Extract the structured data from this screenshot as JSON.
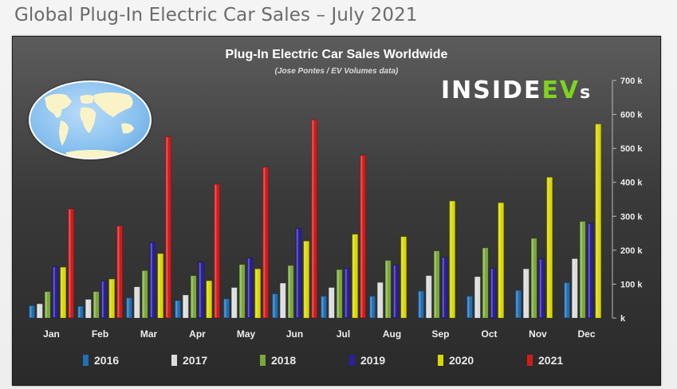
{
  "header": {
    "title": "Global Plug-In Electric Car Sales – July 2021"
  },
  "brand": {
    "name_main": "INSIDE",
    "name_ev": "EV",
    "name_s": "s"
  },
  "chart_data": {
    "type": "bar",
    "title": "Plug-In Electric Car Sales Worldwide",
    "subtitle": "(Jose Pontes / EV Volumes data)",
    "categories": [
      "Jan",
      "Feb",
      "Mar",
      "Apr",
      "May",
      "Jun",
      "Jul",
      "Aug",
      "Sep",
      "Oct",
      "Nov",
      "Dec"
    ],
    "yticks": [
      "k",
      "100 k",
      "200 k",
      "300 k",
      "400 k",
      "500 k",
      "600 k",
      "700 k"
    ],
    "ylim": [
      0,
      700
    ],
    "yunit": "k",
    "series": [
      {
        "name": "2016",
        "color": "#1f6fb5",
        "values": [
          37,
          35,
          60,
          52,
          57,
          72,
          65,
          65,
          80,
          65,
          82,
          105
        ]
      },
      {
        "name": "2017",
        "color": "#dcdcdc",
        "values": [
          42,
          55,
          92,
          68,
          90,
          103,
          90,
          105,
          125,
          122,
          145,
          175
        ]
      },
      {
        "name": "2018",
        "color": "#7aa83b",
        "values": [
          78,
          78,
          140,
          125,
          158,
          155,
          143,
          170,
          198,
          207,
          235,
          285
        ]
      },
      {
        "name": "2019",
        "color": "#2a1f9c",
        "values": [
          152,
          110,
          223,
          165,
          178,
          265,
          147,
          157,
          180,
          147,
          175,
          280
        ]
      },
      {
        "name": "2020",
        "color": "#d8d800",
        "values": [
          150,
          115,
          190,
          110,
          145,
          227,
          247,
          240,
          345,
          340,
          415,
          572
        ]
      },
      {
        "name": "2021",
        "color": "#d31a1a",
        "values": [
          322,
          272,
          535,
          395,
          445,
          585,
          480,
          null,
          null,
          null,
          null,
          null
        ]
      }
    ],
    "legend_position": "bottom",
    "grid": false
  }
}
